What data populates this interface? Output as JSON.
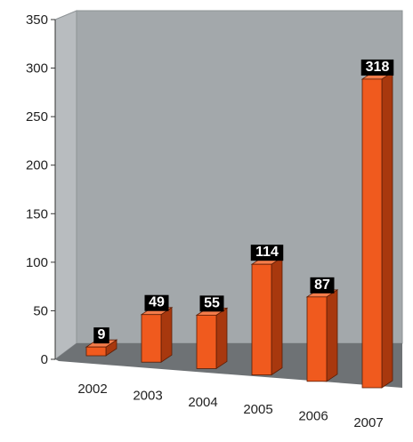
{
  "chart_data": {
    "type": "bar",
    "title": "",
    "xlabel": "",
    "ylabel": "",
    "categories": [
      "2002",
      "2003",
      "2004",
      "2005",
      "2006",
      "2007"
    ],
    "values": [
      9,
      49,
      55,
      114,
      87,
      318
    ],
    "data_labels": [
      "9",
      "49",
      "55",
      "114",
      "87",
      "318"
    ],
    "ylim": [
      0,
      350
    ],
    "yticks": [
      "0",
      "50",
      "100",
      "150",
      "200",
      "250",
      "300",
      "350"
    ],
    "grid": false,
    "legend": "none",
    "style": "3d-perspective",
    "colors": {
      "bar_front": "#f05a1e",
      "bar_side": "#a8380e",
      "bar_top": "#f47c4a",
      "back_wall": "#a3a8ab",
      "side_wall": "#b8bcbf",
      "floor": "#6e7275",
      "label_bg": "#000000",
      "label_text": "#ffffff"
    }
  }
}
